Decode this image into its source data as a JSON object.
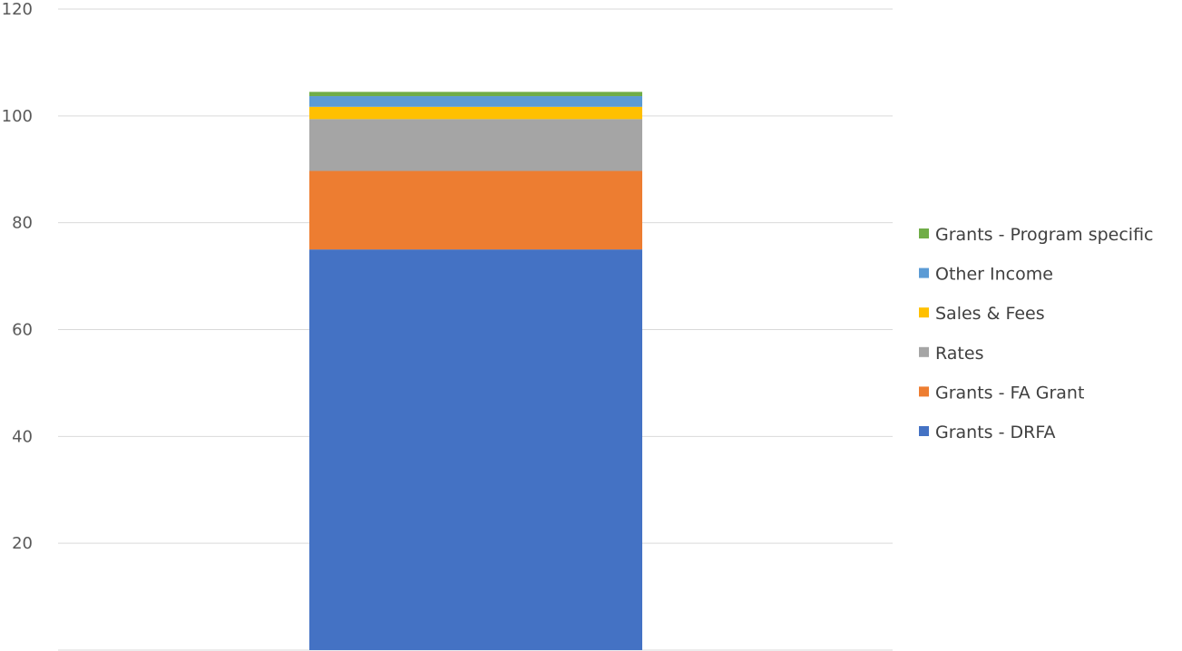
{
  "chart_data": {
    "type": "bar",
    "stacked": true,
    "categories": [
      ""
    ],
    "series": [
      {
        "name": "Grants - DRFA",
        "values": [
          75.0
        ],
        "color": "#4472C4"
      },
      {
        "name": "Grants - FA Grant",
        "values": [
          14.7
        ],
        "color": "#ED7D31"
      },
      {
        "name": "Rates",
        "values": [
          9.7
        ],
        "color": "#A5A5A5"
      },
      {
        "name": "Sales & Fees",
        "values": [
          2.3
        ],
        "color": "#FFC000"
      },
      {
        "name": "Other Income",
        "values": [
          2.0
        ],
        "color": "#5B9BD5"
      },
      {
        "name": "Grants - Program specific",
        "values": [
          0.8
        ],
        "color": "#70AD47"
      }
    ],
    "y_ticks": [
      "20",
      "40",
      "60",
      "80",
      "100",
      "120"
    ],
    "ylim": [
      0,
      120
    ],
    "grid": true,
    "legend_position": "right",
    "title": "",
    "xlabel": "",
    "ylabel": ""
  }
}
